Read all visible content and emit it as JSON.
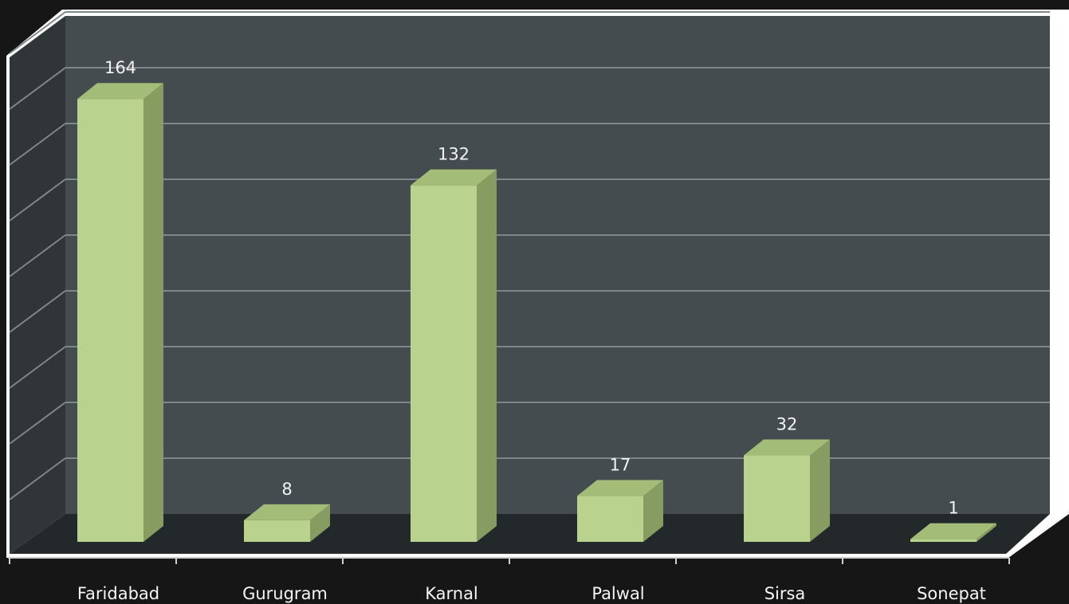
{
  "chart_data": {
    "type": "bar",
    "categories": [
      "Faridabad",
      "Gurugram",
      "Karnal",
      "Palwal",
      "Sirsa",
      "Sonepat"
    ],
    "values": [
      164,
      8,
      132,
      17,
      32,
      1
    ],
    "ylim": [
      0,
      180
    ],
    "grid": true,
    "three_d": true,
    "colors": {
      "bar_front": "#b9d38e",
      "bar_top": "#a3bd78",
      "bar_side": "#879c61",
      "back_wall": "#444c4f",
      "side_wall": "#2f3538",
      "floor": "#23292b",
      "gridline": "#7f878a",
      "background": "#161616",
      "outer_panel": "#ffffff"
    }
  }
}
